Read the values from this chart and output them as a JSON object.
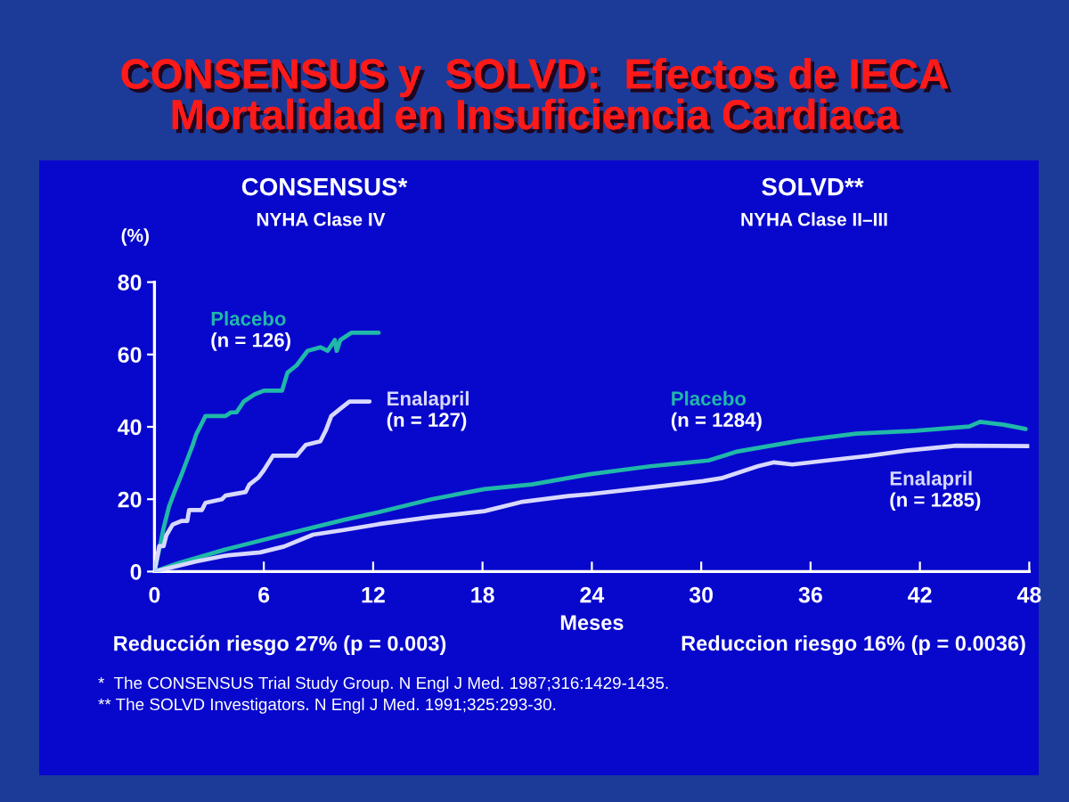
{
  "chart_data": {
    "type": "line",
    "title": "CONSENSUS y  SOLVD:  Efectos de IECA\nMortalidad en Insuficiencia Cardiaca",
    "xlabel": "Meses",
    "ylabel": "(%)",
    "annotations": [
      "CONSENSUS*",
      "NYHA Clase IV",
      "SOLVD**",
      "NYHA Clase II–III",
      "Reducción riesgo 27% (p = 0.003)",
      "Reduccion riesgo 16% (p = 0.0036)",
      "*  The CONSENSUS Trial Study Group. N Engl J Med. 1987;316:1429-1435.",
      "** The SOLVD Investigators. N Engl J Med. 1991;325:293-30."
    ],
    "xlim": [
      0,
      48
    ],
    "ylim": [
      0,
      80
    ],
    "xticks": [
      0,
      6,
      12,
      18,
      24,
      30,
      36,
      42,
      48
    ],
    "yticks": [
      0,
      20,
      40,
      60,
      80
    ],
    "series": [
      {
        "name": "Placebo\n(n = 126)",
        "color": "#20b8a8",
        "x": [
          0,
          0.3,
          0.5,
          0.8,
          1.1,
          1.5,
          1.8,
          2.1,
          2.3,
          2.6,
          2.8,
          3.9,
          4.2,
          4.5,
          4.9,
          5.5,
          6.0,
          7.0,
          7.3,
          7.8,
          8.4,
          9.1,
          9.5,
          9.9,
          10.0,
          10.2,
          10.8,
          12.3
        ],
        "values": [
          0,
          7,
          12,
          18,
          22,
          27,
          31,
          35,
          38,
          41,
          43,
          43,
          44,
          44,
          47,
          49,
          50,
          50,
          55,
          57,
          61,
          62,
          61,
          64,
          61,
          64,
          66,
          66
        ]
      },
      {
        "name": "Enalapril\n(n = 127)",
        "color": "#d8d8ff",
        "x": [
          0,
          0.26,
          0.5,
          0.65,
          1.0,
          1.5,
          1.8,
          1.9,
          2.6,
          2.8,
          3.7,
          3.9,
          5.0,
          5.2,
          5.7,
          6.0,
          6.5,
          7.8,
          8.3,
          9.1,
          9.4,
          9.7,
          10.2,
          10.7,
          11.8
        ],
        "values": [
          0,
          7,
          7,
          10,
          13,
          14,
          14,
          17,
          17,
          19,
          20,
          21,
          22,
          24,
          26,
          28,
          32,
          32,
          35,
          36,
          39,
          43,
          45,
          47,
          47
        ]
      },
      {
        "name": "Placebo\n(n = 1284)",
        "color": "#20b8a8",
        "x": [
          0,
          1.3,
          3.9,
          7.1,
          10.4,
          12.3,
          15.2,
          18.1,
          20.7,
          23.9,
          27.2,
          30.4,
          32.0,
          35.3,
          38.5,
          41.8,
          44.7,
          45.3,
          46.6,
          47.8
        ],
        "values": [
          0,
          2.3,
          6.1,
          10.2,
          14.3,
          16.4,
          20,
          22.8,
          24.1,
          26.9,
          29.1,
          30.7,
          33.2,
          36.1,
          38.1,
          38.9,
          40.1,
          41.4,
          40.6,
          39.4
        ]
      },
      {
        "name": "Enalapril\n(n = 1285)",
        "color": "#d8d8ff",
        "x": [
          0,
          2.3,
          3.9,
          5.8,
          7.1,
          8.7,
          10.4,
          12.3,
          15.2,
          18.1,
          20.1,
          22.7,
          23.9,
          27.2,
          30.1,
          31.1,
          33.1,
          34.0,
          35.0,
          36.9,
          39.2,
          41.4,
          44.0,
          48.0
        ],
        "values": [
          0,
          2.8,
          4.4,
          5.3,
          6.9,
          10.2,
          11.5,
          13.1,
          15.1,
          16.7,
          19.2,
          20.9,
          21.4,
          23.3,
          25.0,
          25.8,
          29.1,
          30.2,
          29.6,
          30.7,
          32.0,
          33.5,
          34.8,
          34.7
        ]
      }
    ]
  }
}
